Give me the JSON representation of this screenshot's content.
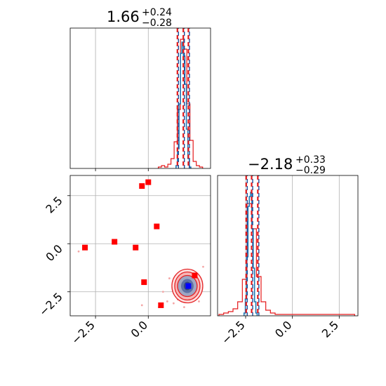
{
  "chart_data": {
    "type": "corner",
    "parameters": [
      {
        "title_value": "1.66",
        "title_plus": "+0.24",
        "title_minus": "−0.28",
        "median": 1.66,
        "lower": 1.38,
        "upper": 1.9
      },
      {
        "title_value": "−2.18",
        "title_plus": "+0.33",
        "title_minus": "−0.29",
        "median": -2.18,
        "lower": -2.47,
        "upper": -1.85
      }
    ],
    "x_range": [
      -3.7,
      2.95
    ],
    "y_range": [
      -3.75,
      3.55
    ],
    "hist2_x_range": [
      -4.0,
      3.5
    ],
    "x_ticks": [
      {
        "value": -2.5,
        "label": "−2.5"
      },
      {
        "value": 0.0,
        "label": "0.0"
      }
    ],
    "y_ticks": [
      {
        "value": 2.5,
        "label": "2.5"
      },
      {
        "value": 0.0,
        "label": "0.0"
      },
      {
        "value": -2.5,
        "label": "−2.5"
      }
    ],
    "hist2_ticks": [
      {
        "value": -2.5,
        "label": "−2.5"
      },
      {
        "value": 0.0,
        "label": "0.0"
      },
      {
        "value": 2.5,
        "label": "2.5"
      }
    ],
    "marginal_1": {
      "blue_bins": [
        [
          1.35,
          0.02
        ],
        [
          1.42,
          0.14
        ],
        [
          1.49,
          0.46
        ],
        [
          1.56,
          0.82
        ],
        [
          1.63,
          0.9
        ],
        [
          1.7,
          0.8
        ],
        [
          1.77,
          0.6
        ],
        [
          1.84,
          0.28
        ],
        [
          1.91,
          0.07
        ],
        [
          1.98,
          0.01
        ]
      ],
      "red_bins": [
        [
          0.55,
          0.01
        ],
        [
          0.7,
          0.02
        ],
        [
          0.85,
          0.01
        ],
        [
          1.0,
          0.03
        ],
        [
          1.15,
          0.07
        ],
        [
          1.3,
          0.19
        ],
        [
          1.45,
          0.42
        ],
        [
          1.6,
          0.92
        ],
        [
          1.75,
          0.85
        ],
        [
          1.9,
          0.46
        ],
        [
          2.05,
          0.2
        ],
        [
          2.2,
          0.05
        ],
        [
          2.35,
          0.02
        ],
        [
          2.5,
          0.01
        ]
      ]
    },
    "marginal_2": {
      "blue_bins": [
        [
          -2.55,
          0.02
        ],
        [
          -2.48,
          0.12
        ],
        [
          -2.41,
          0.42
        ],
        [
          -2.34,
          0.78
        ],
        [
          -2.27,
          0.85
        ],
        [
          -2.2,
          0.88
        ],
        [
          -2.13,
          0.62
        ],
        [
          -2.06,
          0.34
        ],
        [
          -1.99,
          0.1
        ],
        [
          -1.92,
          0.02
        ]
      ],
      "red_bins": [
        [
          -3.8,
          0.01
        ],
        [
          -3.55,
          0.02
        ],
        [
          -3.3,
          0.03
        ],
        [
          -3.05,
          0.05
        ],
        [
          -2.8,
          0.1
        ],
        [
          -2.55,
          0.26
        ],
        [
          -2.3,
          0.8
        ],
        [
          -2.05,
          0.62
        ],
        [
          -1.8,
          0.28
        ],
        [
          -1.55,
          0.1
        ],
        [
          -1.3,
          0.04
        ],
        [
          -1.05,
          0.02
        ],
        [
          -0.8,
          0.01
        ],
        [
          3.2,
          0.01
        ]
      ]
    },
    "scatter_points": [
      [
        -3.0,
        -0.2
      ],
      [
        -1.6,
        0.1
      ],
      [
        -0.6,
        -0.2
      ],
      [
        -0.3,
        3.0
      ],
      [
        0.0,
        3.2
      ],
      [
        0.4,
        0.9
      ],
      [
        -0.2,
        -2.0
      ],
      [
        0.6,
        -3.2
      ],
      [
        2.2,
        -1.65
      ]
    ],
    "true_point": [
      1.9,
      -2.2
    ],
    "contour_center": [
      1.85,
      -2.2
    ],
    "grid": true
  }
}
